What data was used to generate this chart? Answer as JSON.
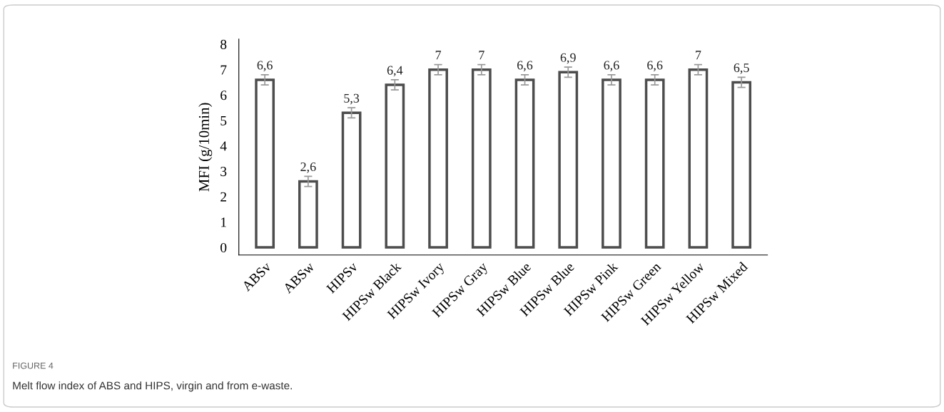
{
  "chart_data": {
    "type": "bar",
    "ylabel": "MFI (g/10min)",
    "categories": [
      "ABSv",
      "ABSw",
      "HIPSv",
      "HIPSw Black",
      "HIPSw Ivory",
      "HIPSw Gray",
      "HIPSw Blue",
      "HIPSw Blue",
      "HIPSw Pink",
      "HIPSw Green",
      "HIPSw Yellow",
      "HIPSw Mixed"
    ],
    "values": [
      6.6,
      2.6,
      5.3,
      6.4,
      7,
      7,
      6.6,
      6.9,
      6.6,
      6.6,
      7,
      6.5
    ],
    "errors": [
      0.2,
      0.2,
      0.2,
      0.2,
      0.2,
      0.2,
      0.2,
      0.2,
      0.2,
      0.2,
      0.2,
      0.2
    ],
    "value_labels": [
      "6,6",
      "2,6",
      "5,3",
      "6,4",
      "7",
      "7",
      "6,6",
      "6,9",
      "6,6",
      "6,6",
      "7",
      "6,5"
    ],
    "color": "#ffffff",
    "ylim": [
      -0.3,
      8.2
    ],
    "yticks": [
      0,
      1,
      2,
      3,
      4,
      5,
      6,
      7,
      8
    ],
    "grid": false,
    "legend": false,
    "annotations": [
      "FIGURE 4",
      "Melt flow index of ABS and HIPS, virgin and from e-waste."
    ]
  }
}
